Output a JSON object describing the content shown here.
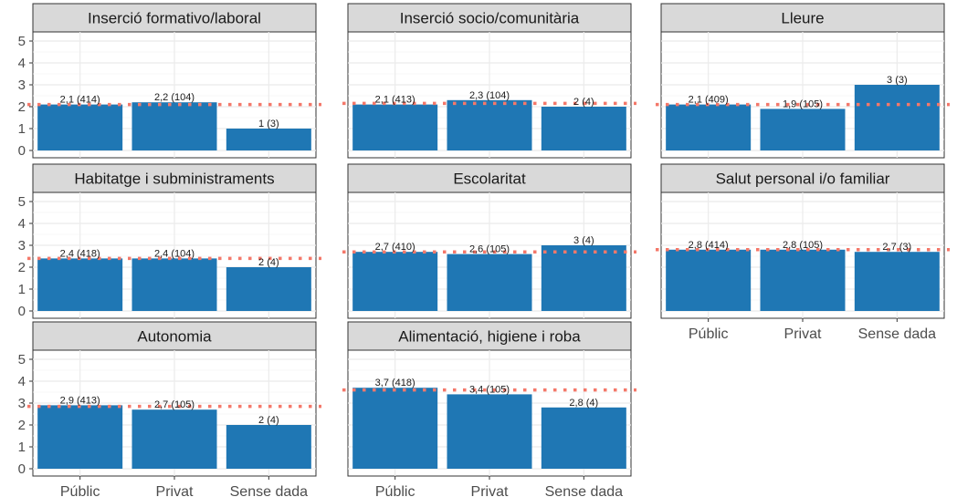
{
  "chart_data": {
    "type": "bar",
    "layout": "facet-grid",
    "categories": [
      "Públic",
      "Privat",
      "Sense dada"
    ],
    "ylim": [
      0,
      5
    ],
    "yticks": [
      0,
      1,
      2,
      3,
      4,
      5
    ],
    "grid": true,
    "colors": {
      "bar": "#1f77b4",
      "reference_line": "#f4786a",
      "strip_fill": "#d9d9d9",
      "panel_bg": "#ffffff",
      "grid": "#ebebeb"
    },
    "panels": [
      {
        "title": "Inserció formativo/laboral",
        "values": [
          2.1,
          2.2,
          1
        ],
        "labels": [
          "2,1 (414)",
          "2,2 (104)",
          "1 (3)"
        ],
        "reference": 2.1
      },
      {
        "title": "Inserció socio/comunitària",
        "values": [
          2.1,
          2.3,
          2
        ],
        "labels": [
          "2,1 (413)",
          "2,3 (104)",
          "2 (4)"
        ],
        "reference": 2.15
      },
      {
        "title": "Lleure",
        "values": [
          2.1,
          1.9,
          3
        ],
        "labels": [
          "2,1 (409)",
          "1,9 (105)",
          "3 (3)"
        ],
        "reference": 2.1
      },
      {
        "title": "Habitatge i subministraments",
        "values": [
          2.4,
          2.4,
          2
        ],
        "labels": [
          "2,4 (418)",
          "2,4 (104)",
          "2 (4)"
        ],
        "reference": 2.4
      },
      {
        "title": "Escolaritat",
        "values": [
          2.7,
          2.6,
          3
        ],
        "labels": [
          "2,7 (410)",
          "2,6 (105)",
          "3 (4)"
        ],
        "reference": 2.7
      },
      {
        "title": "Salut personal i/o familiar",
        "values": [
          2.8,
          2.8,
          2.7
        ],
        "labels": [
          "2,8 (414)",
          "2,8 (105)",
          "2,7 (3)"
        ],
        "reference": 2.8
      },
      {
        "title": "Autonomia",
        "values": [
          2.9,
          2.7,
          2
        ],
        "labels": [
          "2,9 (413)",
          "2,7 (105)",
          "2 (4)"
        ],
        "reference": 2.85
      },
      {
        "title": "Alimentació, higiene i roba",
        "values": [
          3.7,
          3.4,
          2.8
        ],
        "labels": [
          "3,7 (418)",
          "3,4 (105)",
          "2,8 (4)"
        ],
        "reference": 3.6
      }
    ]
  }
}
